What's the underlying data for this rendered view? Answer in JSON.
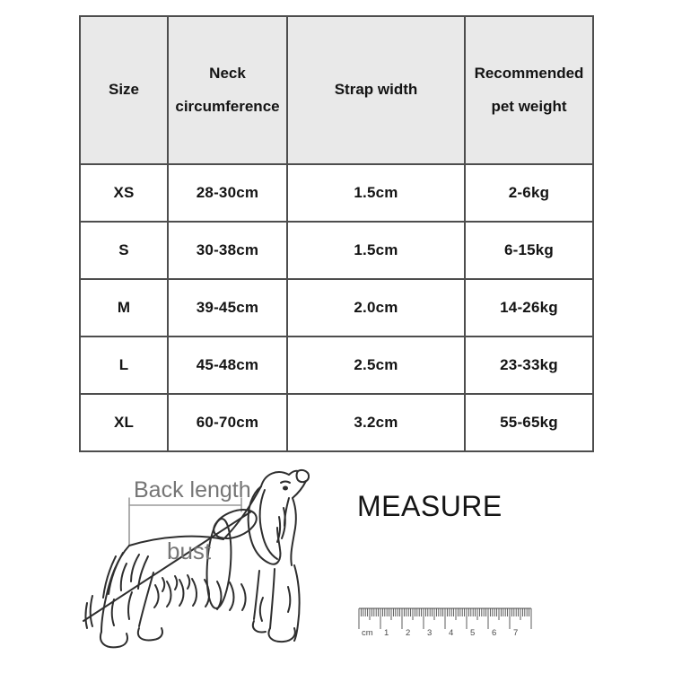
{
  "table": {
    "headers": [
      "Size",
      "Neck circumference",
      "Strap width",
      "Recommended pet weight"
    ],
    "rows": [
      [
        "XS",
        "28-30cm",
        "1.5cm",
        "2-6kg"
      ],
      [
        "S",
        "30-38cm",
        "1.5cm",
        "6-15kg"
      ],
      [
        "M",
        "39-45cm",
        "2.0cm",
        "14-26kg"
      ],
      [
        "L",
        "45-48cm",
        "2.5cm",
        "23-33kg"
      ],
      [
        "XL",
        "60-70cm",
        "3.2cm",
        "55-65kg"
      ]
    ],
    "header_bg": "#e9e9e9",
    "border_color": "#4d4d4d",
    "text_color": "#141414"
  },
  "diagram": {
    "back_length_label": "Back length",
    "bust_label": "bust",
    "measure_title": "MEASURE",
    "label_color": "#757575",
    "sketch_color": "#2e2e2e",
    "ruler": {
      "unit_label": "cm",
      "numbers": [
        "1",
        "2",
        "3",
        "4",
        "5",
        "6",
        "7"
      ]
    }
  }
}
